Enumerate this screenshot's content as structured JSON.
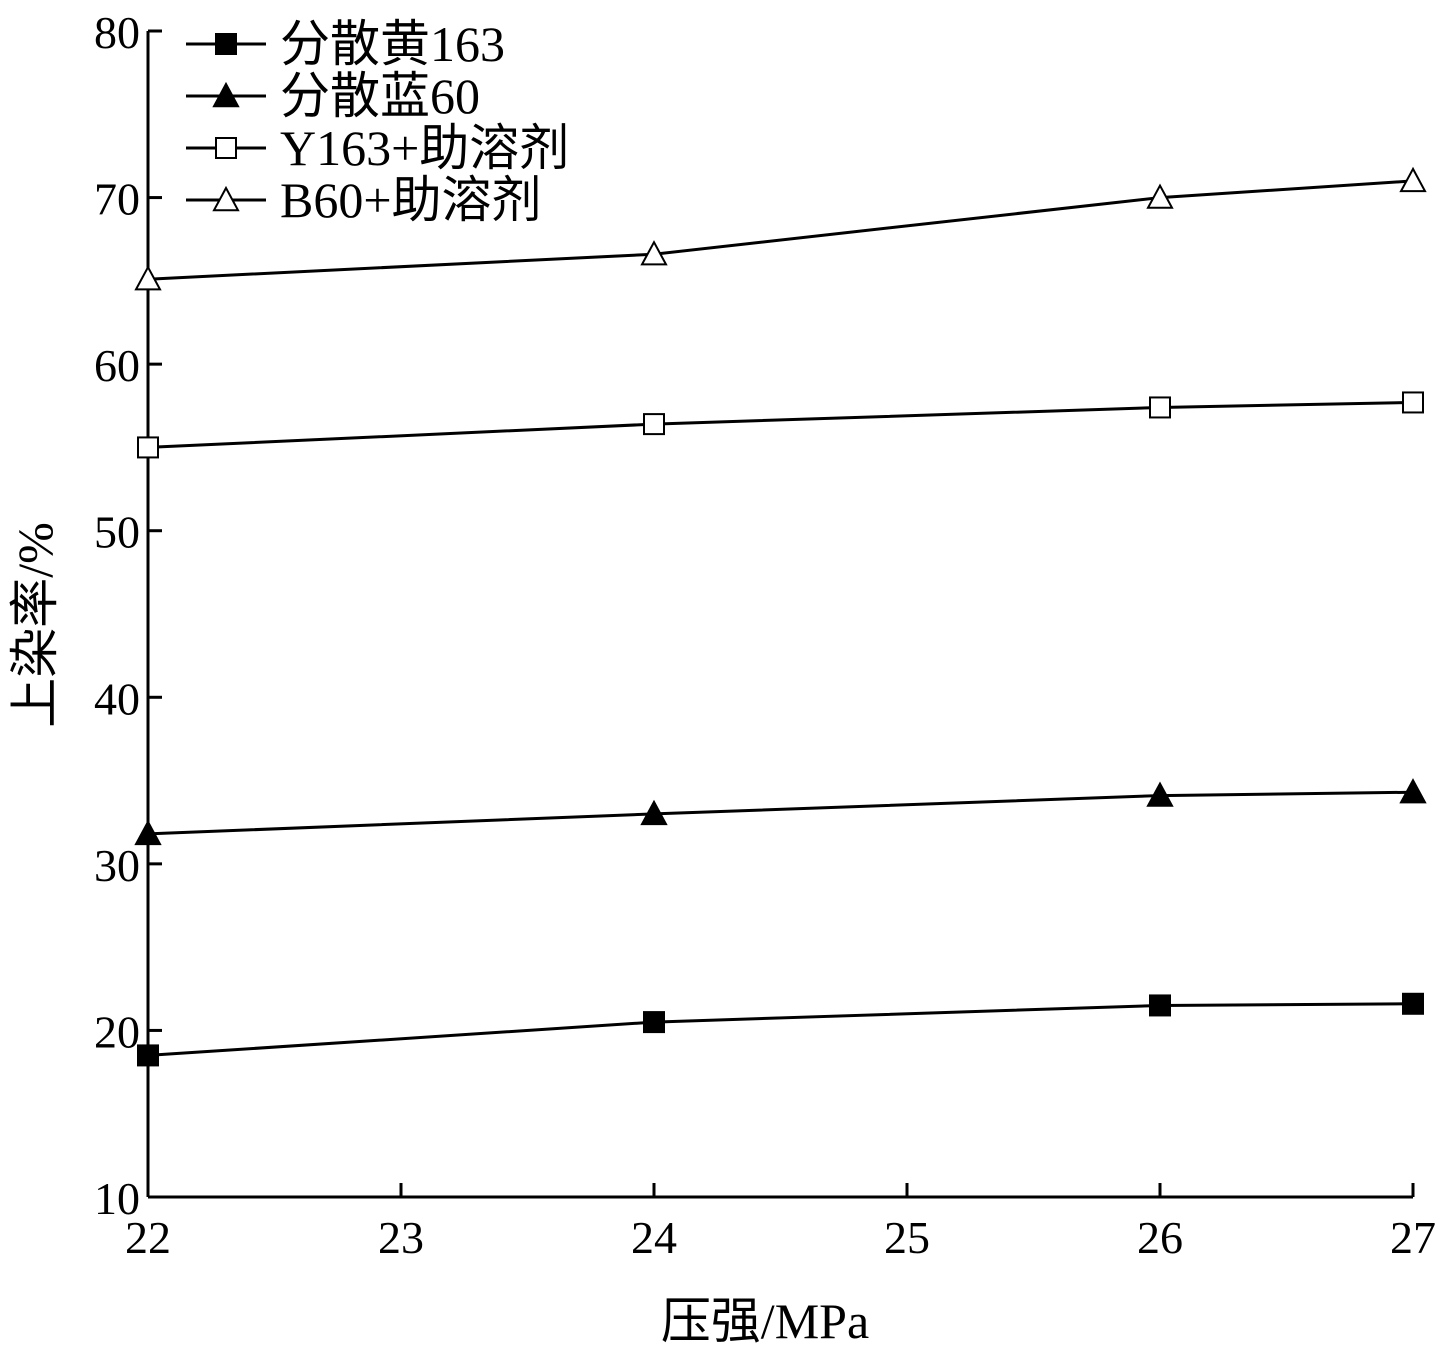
{
  "chart_data": {
    "type": "line",
    "title": "",
    "xlabel": "压强/MPa",
    "ylabel": "上染率/%",
    "xlim": [
      22,
      27
    ],
    "ylim": [
      10,
      80
    ],
    "xticks": [
      22,
      23,
      24,
      25,
      26,
      27
    ],
    "yticks": [
      10,
      20,
      30,
      40,
      50,
      60,
      70,
      80
    ],
    "grid": false,
    "legend_position": "top-left",
    "series": [
      {
        "name": "分散黄163",
        "marker": "square-filled",
        "x": [
          22,
          24,
          26,
          27
        ],
        "y": [
          18.5,
          20.5,
          21.5,
          21.6
        ]
      },
      {
        "name": "分散蓝60",
        "marker": "triangle-filled",
        "x": [
          22,
          24,
          26,
          27
        ],
        "y": [
          31.8,
          33.0,
          34.1,
          34.3
        ]
      },
      {
        "name": "Y163+助溶剂",
        "marker": "square-open",
        "x": [
          22,
          24,
          26,
          27
        ],
        "y": [
          55.0,
          56.4,
          57.4,
          57.7
        ]
      },
      {
        "name": "B60+助溶剂",
        "marker": "triangle-open",
        "x": [
          22,
          24,
          26,
          27
        ],
        "y": [
          65.1,
          66.6,
          70.0,
          71.0
        ]
      }
    ]
  },
  "colors": {
    "line": "#000000",
    "background": "#ffffff"
  }
}
